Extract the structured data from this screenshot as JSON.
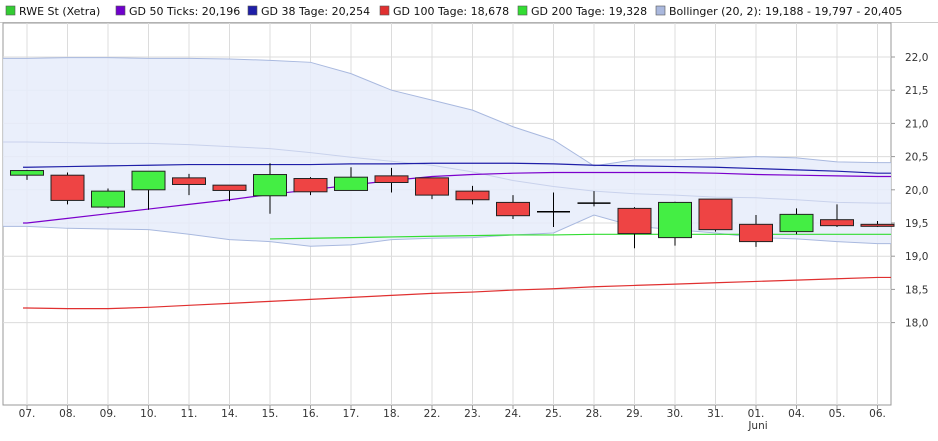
{
  "legend": [
    {
      "label": "RWE St (Xetra)",
      "color": "#33cc33"
    },
    {
      "label": "GD 50 Ticks: 20,196",
      "color": "#6f00cc"
    },
    {
      "label": "GD 38 Tage: 20,254",
      "color": "#1f1fa8"
    },
    {
      "label": "GD 100 Tage: 18,678",
      "color": "#e03030"
    },
    {
      "label": "GD 200 Tage: 19,328",
      "color": "#33dd33"
    },
    {
      "label": "Bollinger (20, 2): 19,188 - 19,797 - 20,405",
      "color": "#aab8dd"
    }
  ],
  "month_label": "Juni",
  "chart_data": {
    "type": "candlestick",
    "title": "RWE St (Xetra)",
    "categories": [
      "07.",
      "08.",
      "09.",
      "10.",
      "11.",
      "14.",
      "15.",
      "16.",
      "17.",
      "18.",
      "22.",
      "23.",
      "24.",
      "25.",
      "28.",
      "29.",
      "30.",
      "31.",
      "01.",
      "04.",
      "05.",
      "06."
    ],
    "ylim": [
      17.8,
      22.2
    ],
    "y_ticks": [
      "18,0",
      "18,5",
      "19,0",
      "19,5",
      "20,0",
      "20,5",
      "21,0",
      "21,5",
      "22,0"
    ],
    "y_axis_position": "right",
    "grid": true,
    "legend_position": "top",
    "colors": {
      "up": "#44ee44",
      "down": "#ee4444",
      "bollinger_fill": "#e6ecfa",
      "bollinger_line": "#a9b9df"
    },
    "ohlc": [
      {
        "o": 20.22,
        "h": 20.3,
        "l": 20.15,
        "c": 20.29
      },
      {
        "o": 20.22,
        "h": 20.26,
        "l": 19.78,
        "c": 19.84
      },
      {
        "o": 19.74,
        "h": 20.02,
        "l": 19.72,
        "c": 19.98
      },
      {
        "o": 20.0,
        "h": 20.28,
        "l": 19.7,
        "c": 20.28
      },
      {
        "o": 20.18,
        "h": 20.24,
        "l": 19.92,
        "c": 20.08
      },
      {
        "o": 20.07,
        "h": 20.07,
        "l": 19.83,
        "c": 19.99
      },
      {
        "o": 19.91,
        "h": 20.4,
        "l": 19.64,
        "c": 20.23
      },
      {
        "o": 20.17,
        "h": 20.19,
        "l": 19.92,
        "c": 19.97
      },
      {
        "o": 19.99,
        "h": 20.34,
        "l": 19.99,
        "c": 20.19
      },
      {
        "o": 20.21,
        "h": 20.33,
        "l": 19.96,
        "c": 20.11
      },
      {
        "o": 20.18,
        "h": 20.18,
        "l": 19.86,
        "c": 19.92
      },
      {
        "o": 19.98,
        "h": 20.06,
        "l": 19.78,
        "c": 19.85
      },
      {
        "o": 19.81,
        "h": 19.92,
        "l": 19.56,
        "c": 19.61
      },
      {
        "o": 19.66,
        "h": 19.96,
        "l": 19.44,
        "c": 19.67
      },
      {
        "o": 19.8,
        "h": 19.98,
        "l": 19.75,
        "c": 19.8
      },
      {
        "o": 19.72,
        "h": 19.74,
        "l": 19.12,
        "c": 19.34
      },
      {
        "o": 19.28,
        "h": 19.82,
        "l": 19.16,
        "c": 19.81
      },
      {
        "o": 19.86,
        "h": 19.86,
        "l": 19.37,
        "c": 19.4
      },
      {
        "o": 19.48,
        "h": 19.62,
        "l": 19.14,
        "c": 19.22
      },
      {
        "o": 19.37,
        "h": 19.72,
        "l": 19.33,
        "c": 19.63
      },
      {
        "o": 19.55,
        "h": 19.78,
        "l": 19.44,
        "c": 19.46
      },
      {
        "o": 19.48,
        "h": 19.53,
        "l": 19.44,
        "c": 19.45
      }
    ],
    "series": [
      {
        "name": "GD 50 Ticks",
        "color": "#7b00cc",
        "values": [
          19.5,
          19.57,
          19.64,
          19.71,
          19.78,
          19.85,
          19.93,
          20.0,
          20.07,
          20.14,
          20.2,
          20.23,
          20.25,
          20.26,
          20.26,
          20.26,
          20.26,
          20.25,
          20.23,
          20.22,
          20.21,
          20.2
        ]
      },
      {
        "name": "GD 38 Tage",
        "color": "#1f1fa8",
        "values": [
          20.34,
          20.35,
          20.36,
          20.37,
          20.38,
          20.38,
          20.38,
          20.38,
          20.39,
          20.39,
          20.4,
          20.4,
          20.4,
          20.39,
          20.37,
          20.36,
          20.35,
          20.34,
          20.32,
          20.3,
          20.28,
          20.25
        ]
      },
      {
        "name": "GD 100 Tage",
        "color": "#e03030",
        "values": [
          18.22,
          18.21,
          18.21,
          18.23,
          18.26,
          18.29,
          18.32,
          18.35,
          18.38,
          18.41,
          18.44,
          18.46,
          18.49,
          18.51,
          18.54,
          18.56,
          18.58,
          18.6,
          18.62,
          18.64,
          18.66,
          18.68
        ]
      },
      {
        "name": "GD 200 Tage",
        "color": "#33dd33",
        "values": [
          null,
          null,
          null,
          null,
          null,
          null,
          19.26,
          19.27,
          19.28,
          19.29,
          19.3,
          19.31,
          19.32,
          19.32,
          19.33,
          19.33,
          19.33,
          19.33,
          19.33,
          19.33,
          19.33,
          19.33
        ]
      },
      {
        "name": "Bollinger upper",
        "color": "#a9b9df",
        "values": [
          21.98,
          21.99,
          21.99,
          21.98,
          21.98,
          21.97,
          21.95,
          21.92,
          21.75,
          21.5,
          21.35,
          21.2,
          20.95,
          20.75,
          20.36,
          20.45,
          20.45,
          20.47,
          20.5,
          20.48,
          20.42,
          20.41
        ]
      },
      {
        "name": "Bollinger middle",
        "color": "#c5cfea",
        "values": [
          20.72,
          20.71,
          20.7,
          20.7,
          20.68,
          20.65,
          20.62,
          20.56,
          20.49,
          20.43,
          20.37,
          20.27,
          20.14,
          20.05,
          19.98,
          19.94,
          19.92,
          19.89,
          19.88,
          19.85,
          19.81,
          19.8
        ]
      },
      {
        "name": "Bollinger lower",
        "color": "#a9b9df",
        "values": [
          19.45,
          19.42,
          19.41,
          19.4,
          19.33,
          19.25,
          19.22,
          19.15,
          19.17,
          19.25,
          19.27,
          19.28,
          19.32,
          19.35,
          19.62,
          19.45,
          19.4,
          19.35,
          19.28,
          19.26,
          19.22,
          19.19
        ]
      }
    ]
  }
}
